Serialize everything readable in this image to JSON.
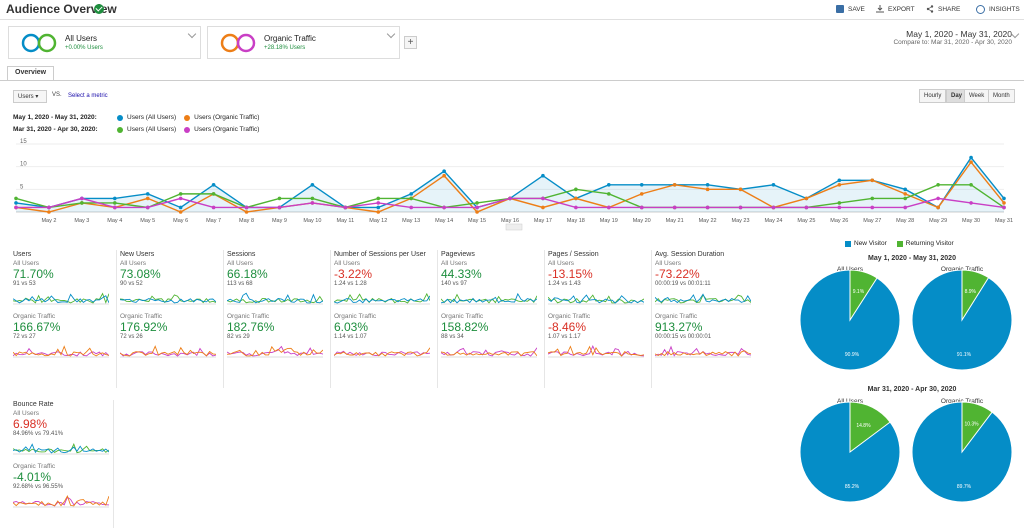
{
  "header": {
    "title": "Audience Overview",
    "save": "SAVE",
    "export": "EXPORT",
    "share": "SHARE",
    "insights": "INSIGHTS"
  },
  "segments": [
    {
      "name": "All Users",
      "sub": "+0.00% Users"
    },
    {
      "name": "Organic Traffic",
      "sub": "+28.18% Users"
    }
  ],
  "date": {
    "range": "May 1, 2020 - May 31, 2020",
    "compare": "Compare to: Mar 31, 2020 - Apr 30, 2020"
  },
  "tab": "Overview",
  "controls": {
    "metric_select": "Users",
    "vs": "VS.",
    "select_metric": "Select a metric",
    "granularity": [
      "Hourly",
      "Day",
      "Week",
      "Month"
    ],
    "active_granularity": "Day"
  },
  "legend": [
    {
      "period": "May 1, 2020 - May 31, 2020:",
      "items": [
        {
          "label": "Users (All Users)",
          "color": "#058dc7"
        },
        {
          "label": "Users (Organic Traffic)",
          "color": "#ed7e17"
        }
      ]
    },
    {
      "period": "Mar 31, 2020 - Apr 30, 2020:",
      "items": [
        {
          "label": "Users (All Users)",
          "color": "#50b432"
        },
        {
          "label": "Users (Organic Traffic)",
          "color": "#c93fc5"
        }
      ]
    }
  ],
  "chart_data": {
    "type": "line",
    "x": [
      "May 1",
      "May 2",
      "May 3",
      "May 4",
      "May 5",
      "May 6",
      "May 7",
      "May 8",
      "May 9",
      "May 10",
      "May 11",
      "May 12",
      "May 13",
      "May 14",
      "May 15",
      "May 16",
      "May 17",
      "May 18",
      "May 19",
      "May 20",
      "May 21",
      "May 22",
      "May 23",
      "May 24",
      "May 25",
      "May 26",
      "May 27",
      "May 28",
      "May 29",
      "May 30",
      "May 31"
    ],
    "x_tick_labels": [
      "May 2",
      "May 3",
      "May 4",
      "May 5",
      "May 6",
      "May 7",
      "May 8",
      "May 9",
      "May 10",
      "May 11",
      "May 12",
      "May 13",
      "May 14",
      "May 15",
      "May 16",
      "May 17",
      "May 18",
      "May 19",
      "May 20",
      "May 21",
      "May 22",
      "May 23",
      "May 24",
      "May 25",
      "May 26",
      "May 27",
      "May 28",
      "May 29",
      "May 30",
      "May 31"
    ],
    "y_ticks": [
      5,
      10,
      15
    ],
    "ylim": [
      0,
      15
    ],
    "grid": true,
    "series": [
      {
        "name": "Users (All Users)",
        "color": "#058dc7",
        "values": [
          2,
          1,
          3,
          3,
          4,
          1,
          6,
          1,
          1,
          6,
          1,
          1,
          4,
          9,
          1,
          3,
          8,
          3,
          6,
          6,
          6,
          6,
          5,
          6,
          3,
          7,
          7,
          5,
          1,
          12,
          3
        ]
      },
      {
        "name": "Users (Organic Traffic)",
        "color": "#ed7e17",
        "values": [
          1,
          0,
          2,
          1,
          3,
          0,
          4,
          0,
          1,
          2,
          1,
          0,
          3,
          8,
          0,
          3,
          1,
          3,
          1,
          4,
          6,
          5,
          5,
          1,
          3,
          6,
          7,
          4,
          1,
          11,
          2
        ]
      },
      {
        "name": "Users (All Users)",
        "color": "#50b432",
        "values": [
          3,
          1,
          2,
          2,
          1,
          4,
          4,
          1,
          3,
          3,
          1,
          3,
          3,
          1,
          2,
          3,
          3,
          5,
          4,
          1,
          1,
          1,
          1,
          1,
          1,
          2,
          3,
          3,
          6,
          6,
          1
        ]
      },
      {
        "name": "Users (Organic Traffic)",
        "color": "#c93fc5",
        "values": [
          1,
          1,
          3,
          1,
          1,
          3,
          1,
          1,
          1,
          2,
          1,
          2,
          1,
          1,
          1,
          3,
          3,
          1,
          1,
          1,
          1,
          1,
          1,
          1,
          1,
          1,
          1,
          1,
          3,
          2,
          1
        ]
      }
    ]
  },
  "metrics": [
    {
      "name": "Users",
      "all_value": "71.70%",
      "all_vs": "91 vs 53",
      "all_pos": true,
      "org_value": "166.67%",
      "org_vs": "72 vs 27",
      "org_pos": true
    },
    {
      "name": "New Users",
      "all_value": "73.08%",
      "all_vs": "90 vs 52",
      "all_pos": true,
      "org_value": "176.92%",
      "org_vs": "72 vs 26",
      "org_pos": true
    },
    {
      "name": "Sessions",
      "all_value": "66.18%",
      "all_vs": "113 vs 68",
      "all_pos": true,
      "org_value": "182.76%",
      "org_vs": "82 vs 29",
      "org_pos": true
    },
    {
      "name": "Number of Sessions per User",
      "all_value": "-3.22%",
      "all_vs": "1.24 vs 1.28",
      "all_pos": false,
      "org_value": "6.03%",
      "org_vs": "1.14 vs 1.07",
      "org_pos": true
    },
    {
      "name": "Pageviews",
      "all_value": "44.33%",
      "all_vs": "140 vs 97",
      "all_pos": true,
      "org_value": "158.82%",
      "org_vs": "88 vs 34",
      "org_pos": true
    },
    {
      "name": "Pages / Session",
      "all_value": "-13.15%",
      "all_vs": "1.24 vs 1.43",
      "all_pos": false,
      "org_value": "-8.46%",
      "org_vs": "1.07 vs 1.17",
      "org_pos": false
    },
    {
      "name": "Avg. Session Duration",
      "all_value": "-73.22%",
      "all_vs": "00:00:19 vs 00:01:11",
      "all_pos": false,
      "org_value": "913.27%",
      "org_vs": "00:00:15 vs 00:00:01",
      "org_pos": true
    }
  ],
  "bounce": {
    "name": "Bounce Rate",
    "all_value": "6.98%",
    "all_vs": "84.96% vs 79.41%",
    "org_value": "-4.01%",
    "org_vs": "92.68% vs 96.55%"
  },
  "seg_labels": {
    "all": "All Users",
    "org": "Organic Traffic"
  },
  "pies": {
    "legend": [
      {
        "label": "New Visitor",
        "color": "#058dc7"
      },
      {
        "label": "Returning Visitor",
        "color": "#50b432"
      }
    ],
    "periods": [
      {
        "title": "May 1, 2020 - May 31, 2020",
        "charts": [
          {
            "label": "All Users",
            "new": "90.9%",
            "ret": "9.1%",
            "new_pct": 90.9
          },
          {
            "label": "Organic Traffic",
            "new": "91.1%",
            "ret": "8.9%",
            "new_pct": 91.1
          }
        ]
      },
      {
        "title": "Mar 31, 2020 - Apr 30, 2020",
        "charts": [
          {
            "label": "All Users",
            "new": "85.2%",
            "ret": "14.8%",
            "new_pct": 85.2
          },
          {
            "label": "Organic Traffic",
            "new": "89.7%",
            "ret": "10.3%",
            "new_pct": 89.7
          }
        ]
      }
    ]
  }
}
